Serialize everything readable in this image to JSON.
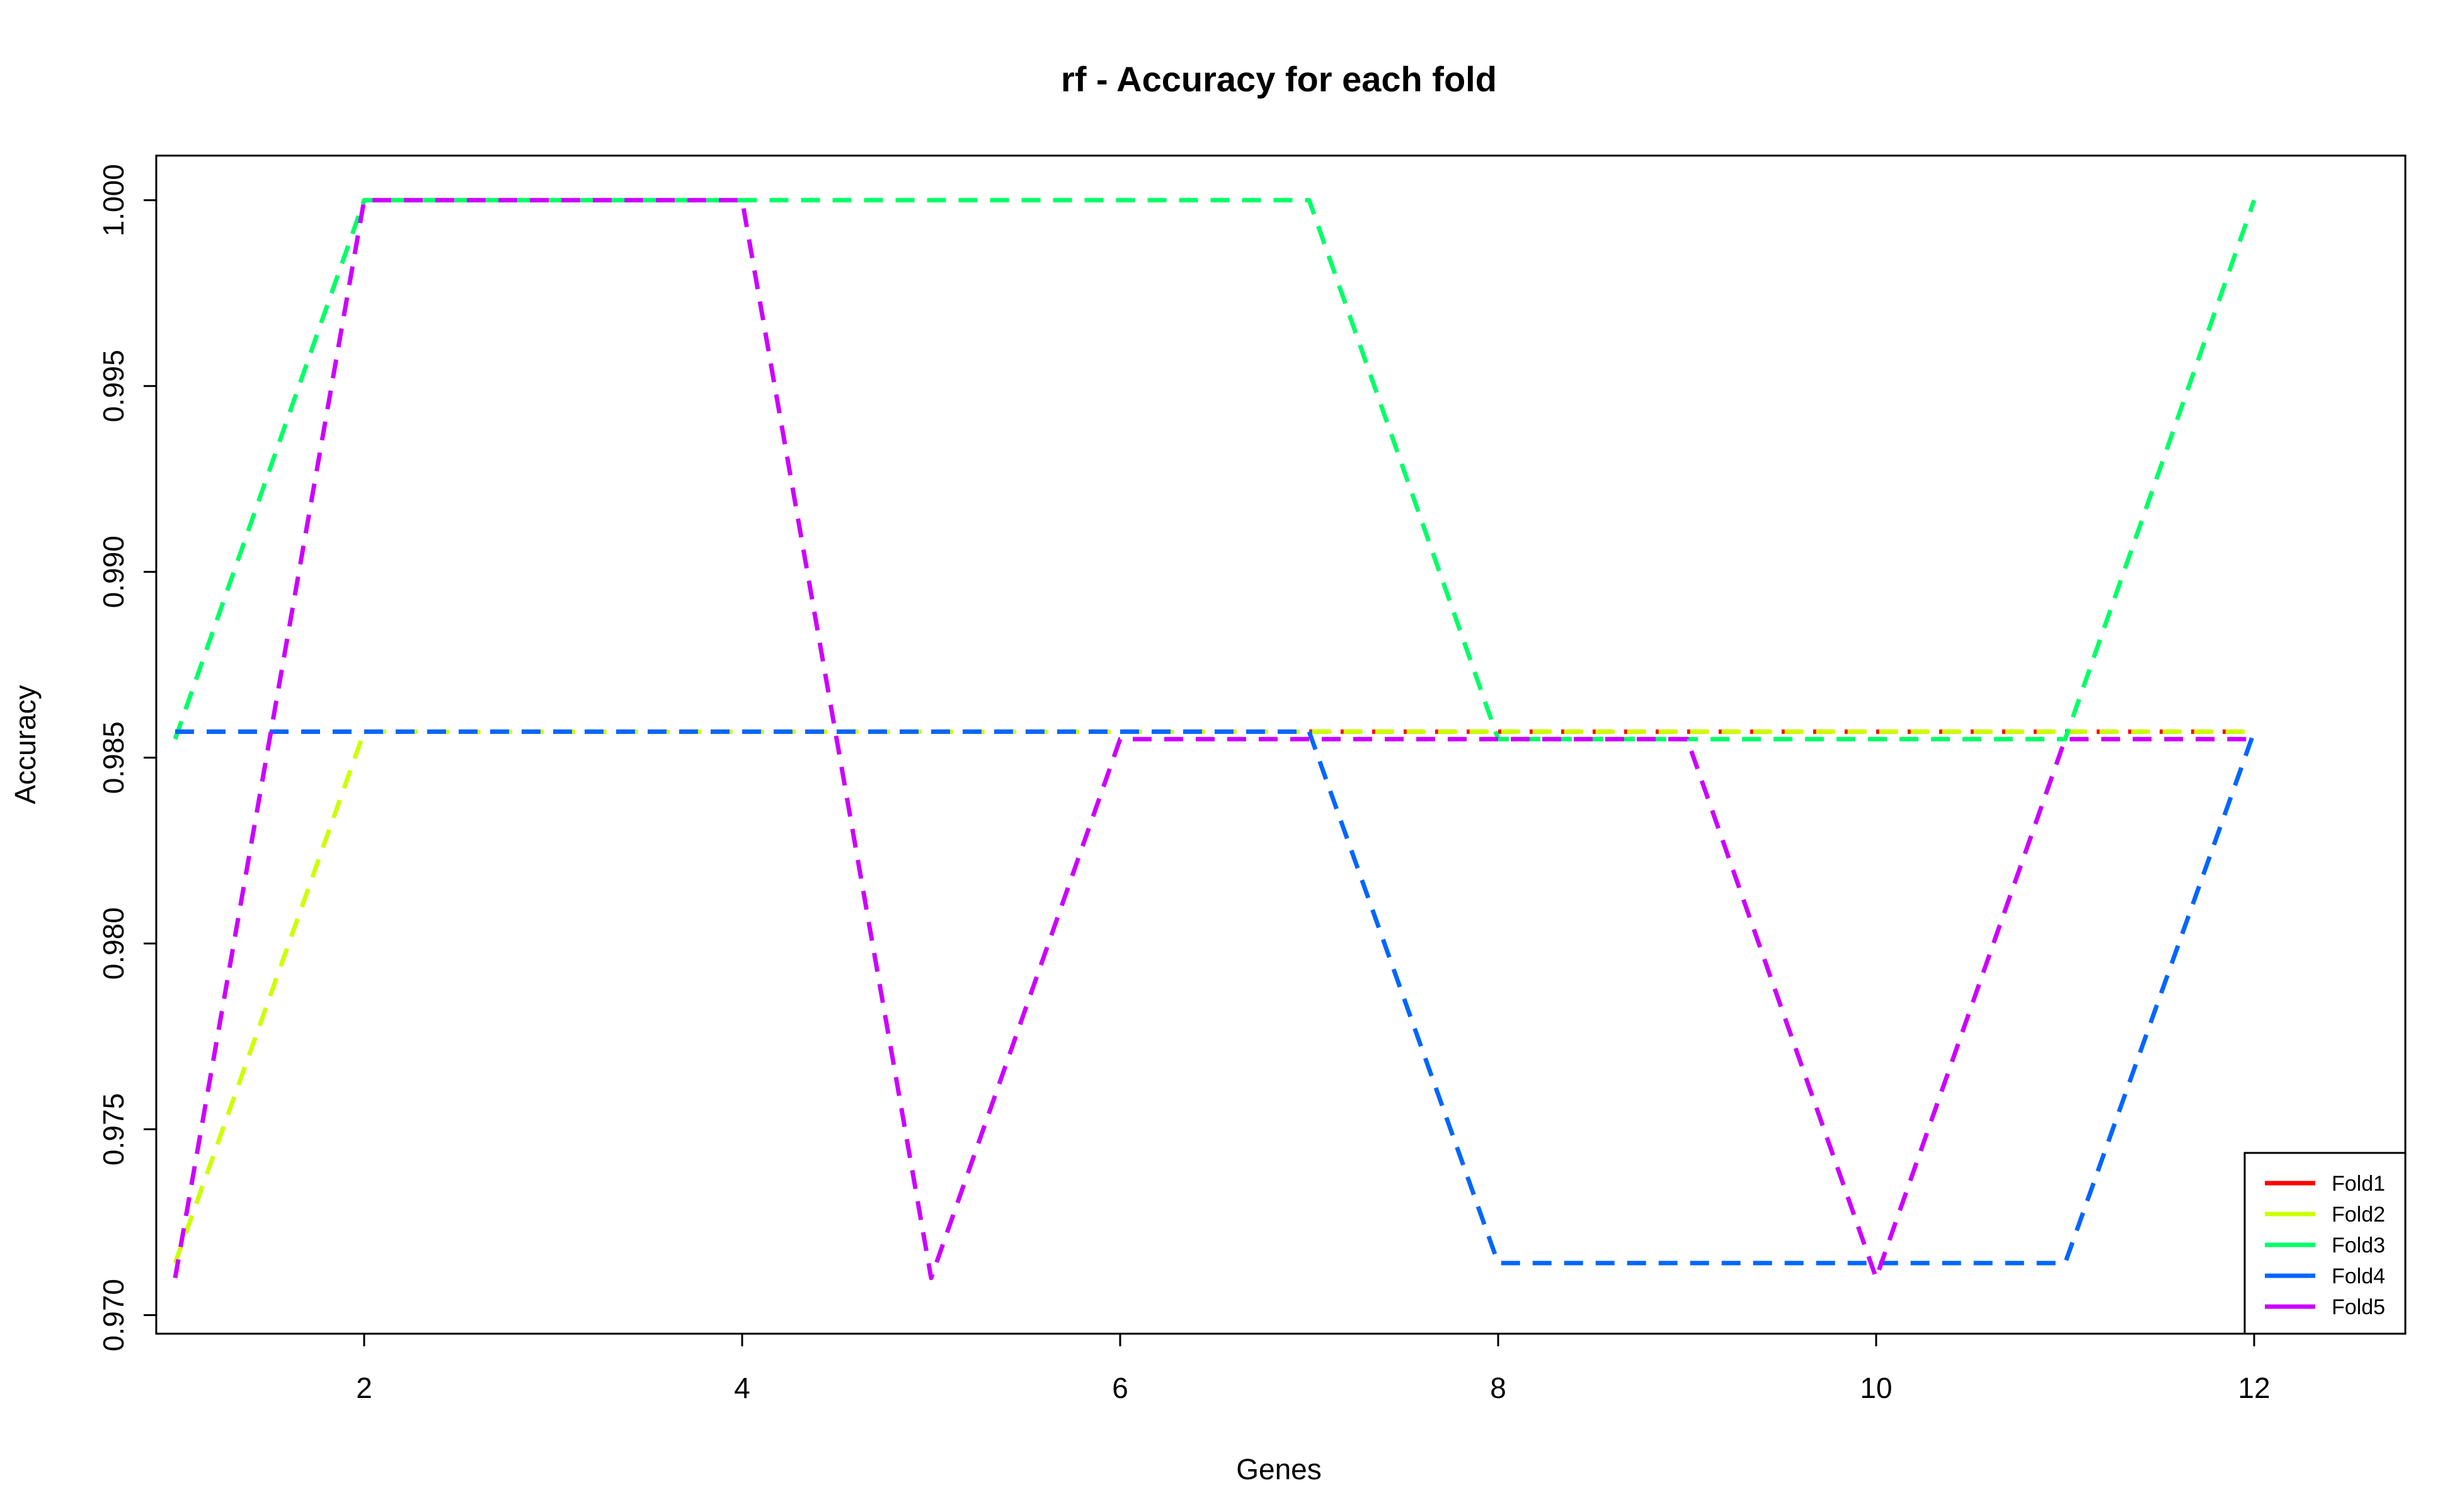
{
  "chart_data": {
    "type": "line",
    "title": "rf - Accuracy for each fold",
    "xlabel": "Genes",
    "ylabel": "Accuracy",
    "xlim": [
      0.9,
      12.8
    ],
    "ylim": [
      0.9695,
      1.0012
    ],
    "xticks": [
      2,
      4,
      6,
      8,
      10,
      12
    ],
    "yticks": [
      0.97,
      0.975,
      0.98,
      0.985,
      0.99,
      0.995,
      1.0
    ],
    "ytick_labels": [
      "0.970",
      "0.975",
      "0.980",
      "0.985",
      "0.990",
      "0.995",
      "1.000"
    ],
    "grid": false,
    "legend_position": "bottom-right",
    "x": [
      1,
      2,
      3,
      4,
      5,
      6,
      7,
      8,
      9,
      10,
      11,
      12
    ],
    "series": [
      {
        "name": "Fold1",
        "color": "#ff0000",
        "values": [
          0.9857,
          0.9857,
          0.9857,
          0.9857,
          0.9857,
          0.9857,
          0.9857,
          0.9857,
          0.9857,
          0.9857,
          0.9857,
          0.9857
        ]
      },
      {
        "name": "Fold2",
        "color": "#ccff00",
        "values": [
          0.9714,
          0.9857,
          0.9857,
          0.9857,
          0.9857,
          0.9857,
          0.9857,
          0.9857,
          0.9857,
          0.9857,
          0.9857,
          0.9857
        ]
      },
      {
        "name": "Fold3",
        "color": "#00ff66",
        "values": [
          0.9855,
          1.0,
          1.0,
          1.0,
          1.0,
          1.0,
          1.0,
          0.9855,
          0.9855,
          0.9855,
          0.9855,
          1.0
        ]
      },
      {
        "name": "Fold4",
        "color": "#0066ff",
        "values": [
          0.9857,
          0.9857,
          0.9857,
          0.9857,
          0.9857,
          0.9857,
          0.9857,
          0.9714,
          0.9714,
          0.9714,
          0.9714,
          0.9857
        ]
      },
      {
        "name": "Fold5",
        "color": "#cc00ff",
        "values": [
          0.971,
          1.0,
          1.0,
          1.0,
          0.971,
          0.9855,
          0.9855,
          0.9855,
          0.9855,
          0.971,
          0.9855,
          0.9855
        ]
      }
    ]
  }
}
